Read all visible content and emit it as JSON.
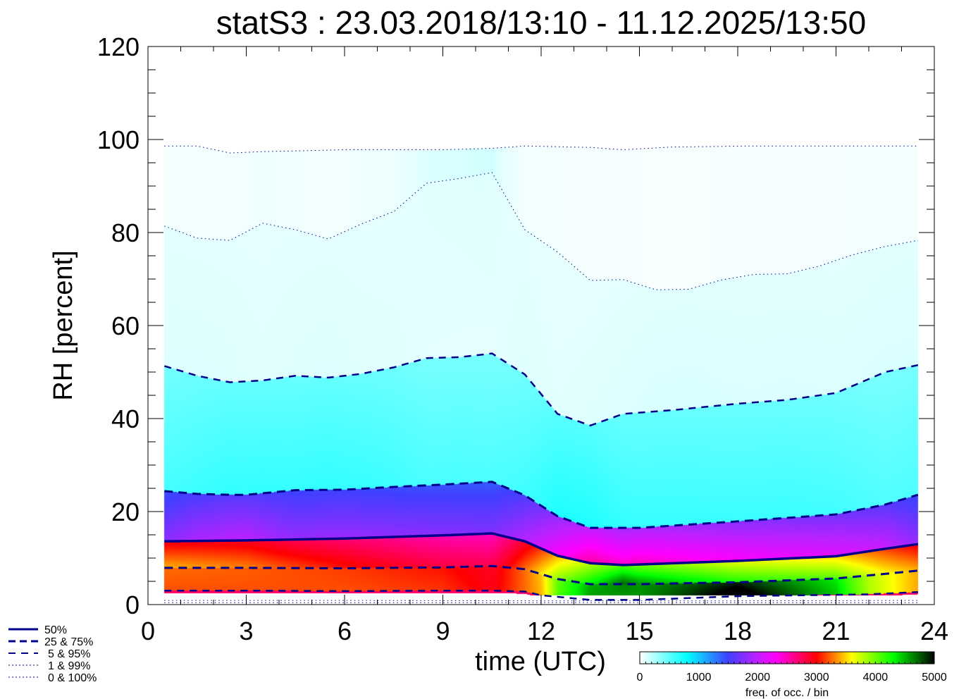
{
  "chart_data": {
    "type": "heatmap",
    "title": "statS3 : 23.03.2018/13:10 - 11.12.2025/13:50",
    "xlabel": "time (UTC)",
    "ylabel": "RH [percent]",
    "xlim": [
      0,
      24
    ],
    "ylim": [
      0,
      120
    ],
    "xticks": [
      "0",
      "3",
      "6",
      "9",
      "12",
      "15",
      "18",
      "21",
      "24"
    ],
    "yticks": [
      "0",
      "20",
      "40",
      "60",
      "80",
      "100",
      "120"
    ],
    "colorbar": {
      "label": "freq. of occ. / bin",
      "range": [
        0,
        5000
      ],
      "ticks": [
        "0",
        "1000",
        "2000",
        "3000",
        "4000",
        "5000"
      ]
    },
    "legend": [
      {
        "label": "50%",
        "style": "solid"
      },
      {
        "label": "25 &  75%",
        "style": "dash-thick"
      },
      {
        "label": "5 &  95%",
        "style": "dash"
      },
      {
        "label": "1 &  99%",
        "style": "dot"
      },
      {
        "label": "0 & 100%",
        "style": "dot"
      }
    ],
    "series": [
      {
        "name": "0%",
        "x": [
          0.5,
          6,
          12,
          18,
          23.5
        ],
        "y": [
          0.4,
          0.4,
          0.4,
          0.4,
          0.4
        ]
      },
      {
        "name": "1%",
        "x": [
          0.5,
          6,
          12,
          18,
          23.5
        ],
        "y": [
          0.9,
          0.9,
          0.8,
          0.8,
          0.9
        ]
      },
      {
        "name": "5%",
        "x": [
          0.5,
          3,
          6,
          9,
          10.5,
          11.5,
          12,
          13.5,
          15,
          18,
          21,
          22,
          23.5
        ],
        "y": [
          3,
          3,
          2.9,
          3,
          3,
          2.8,
          2,
          1,
          1,
          1.8,
          2.1,
          2.2,
          2.7
        ]
      },
      {
        "name": "25%",
        "x": [
          0.5,
          3,
          6,
          9,
          10.5,
          11.5,
          12.5,
          13.5,
          15,
          18,
          21,
          22.5,
          23.5
        ],
        "y": [
          7.9,
          7.9,
          7.8,
          8,
          8.3,
          7.6,
          5.5,
          4.4,
          4.4,
          4.8,
          5.6,
          6.6,
          7.3
        ]
      },
      {
        "name": "50%",
        "x": [
          0.5,
          3,
          6,
          9,
          10.5,
          11.5,
          12.5,
          13.5,
          14.5,
          18,
          21,
          22.5,
          23.5
        ],
        "y": [
          13.6,
          13.8,
          14.2,
          14.9,
          15.3,
          13.6,
          10.5,
          8.9,
          8.5,
          9.4,
          10.4,
          12,
          13
        ]
      },
      {
        "name": "75%",
        "x": [
          0.5,
          1.5,
          2.5,
          3,
          4.5,
          6,
          7.5,
          9,
          10.5,
          11.5,
          12.5,
          13.5,
          15,
          18,
          21,
          22.5,
          23.5
        ],
        "y": [
          24.4,
          23.8,
          23.6,
          23.6,
          24.6,
          24.7,
          25.3,
          25.8,
          26.4,
          23.5,
          19,
          16.5,
          16.5,
          17.9,
          19.4,
          21.5,
          23.6
        ]
      },
      {
        "name": "95%",
        "x": [
          0.5,
          1.5,
          2.5,
          3.5,
          4.5,
          5.5,
          6.5,
          7.5,
          8.5,
          9.5,
          10.5,
          11.5,
          12.5,
          13.5,
          14.5,
          16,
          18,
          19.5,
          21,
          22.5,
          23.5
        ],
        "y": [
          51.3,
          49.2,
          47.8,
          48.2,
          49.2,
          48.8,
          49.6,
          51,
          53,
          53.2,
          54,
          49.5,
          41,
          38.5,
          41,
          41.8,
          43.2,
          44,
          45.5,
          50,
          51.5
        ]
      },
      {
        "name": "99%",
        "x": [
          0.5,
          1.5,
          2.5,
          3.5,
          4.5,
          5.5,
          6.5,
          7.5,
          8.5,
          9.5,
          10.5,
          11.5,
          12.5,
          13.5,
          14.5,
          15.5,
          16.5,
          17.5,
          18.5,
          19.5,
          20.5,
          21.5,
          22.5,
          23.5
        ],
        "y": [
          81.4,
          78.8,
          78.3,
          82,
          80.6,
          78.6,
          81.8,
          84.5,
          90.6,
          91.6,
          92.9,
          80.6,
          75.8,
          69.7,
          69.9,
          67.7,
          67.8,
          69.8,
          71,
          71.1,
          72.8,
          75.2,
          77,
          78.3
        ]
      },
      {
        "name": "100%",
        "x": [
          0.5,
          1.5,
          2.5,
          3.5,
          6,
          9,
          10.5,
          11.5,
          13.5,
          14.5,
          16,
          18.5,
          21,
          23.5
        ],
        "y": [
          98.6,
          98.6,
          97.1,
          97.4,
          97.8,
          97.8,
          98.1,
          98.6,
          98.3,
          97.8,
          98.4,
          98.6,
          98.6,
          98.6
        ]
      }
    ]
  }
}
